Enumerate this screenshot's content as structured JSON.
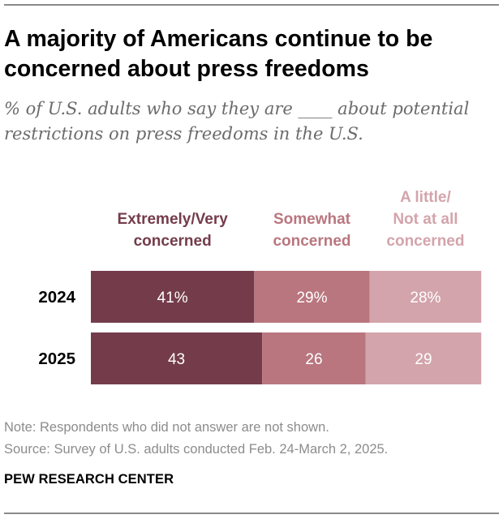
{
  "header": {
    "title_line1": "A majority of Americans continue to be",
    "title_line2": "concerned about press freedoms",
    "subtitle_line1": "% of U.S. adults who say they are ____ about potential",
    "subtitle_line2": "restrictions on press freedoms in the U.S."
  },
  "chart_data": {
    "type": "stacked-bar-horizontal",
    "title": "A majority of Americans continue to be concerned about press freedoms",
    "subtitle": "% of U.S. adults who say they are ____ about potential restrictions on press freedoms in the U.S.",
    "categories": [
      "2024",
      "2025"
    ],
    "series": [
      {
        "name": "Extremely/Very concerned",
        "legend_lines": [
          "Extremely/Very",
          "concerned"
        ],
        "color": "#743c4b",
        "values": [
          41,
          43
        ],
        "labels": [
          "41%",
          "43"
        ]
      },
      {
        "name": "Somewhat concerned",
        "legend_lines": [
          "Somewhat",
          "concerned"
        ],
        "color": "#b9767f",
        "values": [
          29,
          26
        ],
        "labels": [
          "29%",
          "26"
        ]
      },
      {
        "name": "A little/ Not at all concerned",
        "legend_lines": [
          "A little/",
          "Not at all",
          "concerned"
        ],
        "color": "#d3a4ab",
        "values": [
          28,
          29
        ],
        "labels": [
          "28%",
          "29"
        ]
      }
    ],
    "xlim": [
      0,
      100
    ],
    "grid": false,
    "legend": "top (column headers above each segment)"
  },
  "footer": {
    "note": "Note: Respondents who did not answer are not shown.",
    "source": "Source: Survey of U.S. adults conducted Feb. 24-March 2, 2025.",
    "org": "PEW RESEARCH CENTER"
  }
}
